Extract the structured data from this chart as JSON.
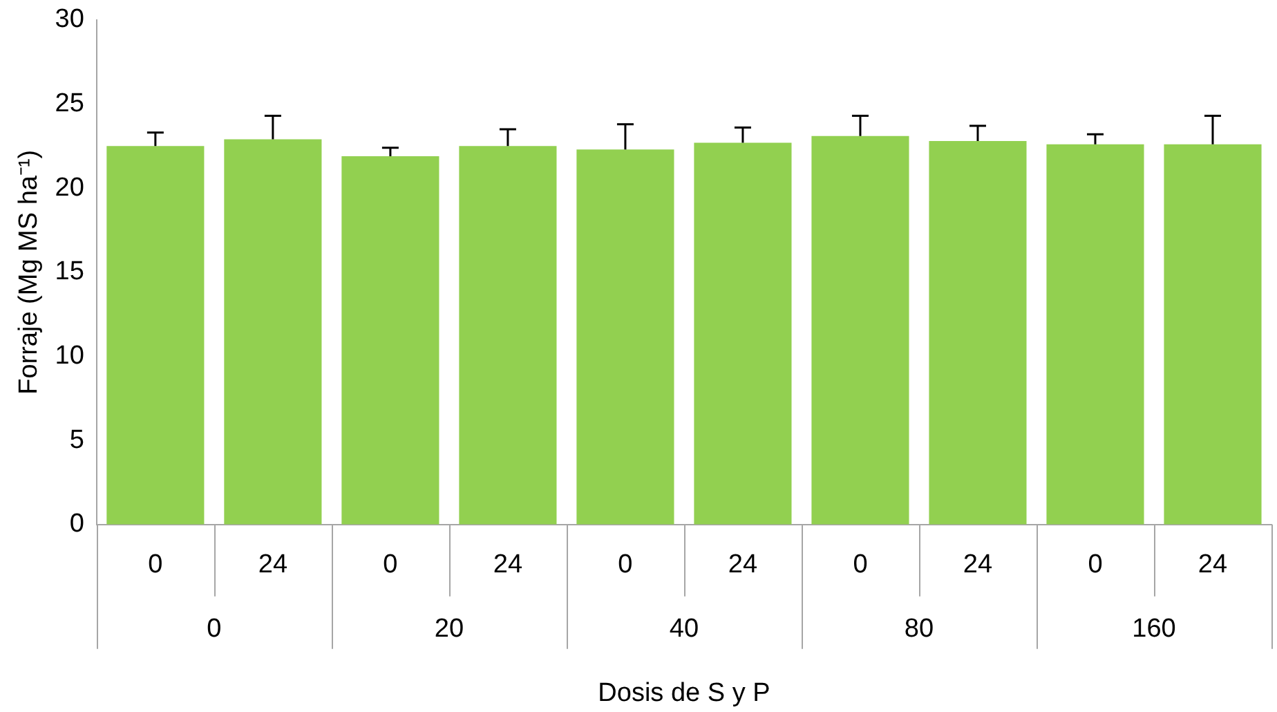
{
  "chart_data": {
    "type": "bar",
    "xlabel": "Dosis de S y P",
    "ylabel": "Forraje (Mg MS ha⁻¹)",
    "categories": [
      "0",
      "24",
      "0",
      "24",
      "0",
      "24",
      "0",
      "24",
      "0",
      "24"
    ],
    "values": [
      22.5,
      22.9,
      21.9,
      22.5,
      22.3,
      22.7,
      23.1,
      22.8,
      22.6,
      22.6
    ],
    "errors": [
      0.8,
      1.4,
      0.5,
      1.0,
      1.5,
      0.9,
      1.2,
      0.9,
      0.6,
      1.7
    ],
    "color": "#92d050",
    "annotations": [
      "0",
      "20",
      "40",
      "80",
      "160"
    ],
    "ylim": [
      0,
      30
    ],
    "yticks": [
      0,
      5,
      10,
      15,
      20,
      25,
      30
    ],
    "grid": false,
    "legend": false
  }
}
